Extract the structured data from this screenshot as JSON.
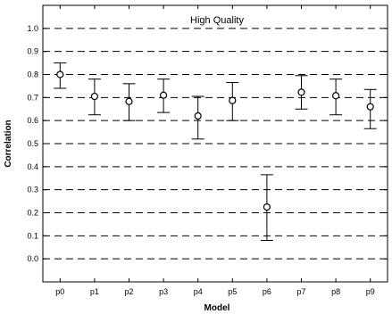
{
  "chart_data": {
    "type": "scatter",
    "title": "High Quality",
    "xlabel": "Model",
    "ylabel": "Correlation",
    "categories": [
      "p0",
      "p1",
      "p2",
      "p3",
      "p4",
      "p5",
      "p6",
      "p7",
      "p8",
      "p9"
    ],
    "series": [
      {
        "values": [
          0.8,
          0.705,
          0.683,
          0.71,
          0.62,
          0.687,
          0.225,
          0.723,
          0.708,
          0.66
        ],
        "error_low": [
          0.74,
          0.625,
          0.6,
          0.635,
          0.52,
          0.6,
          0.08,
          0.65,
          0.625,
          0.565
        ],
        "error_high": [
          0.85,
          0.78,
          0.76,
          0.78,
          0.705,
          0.765,
          0.365,
          0.795,
          0.78,
          0.735
        ]
      }
    ],
    "ylim": [
      -0.1,
      1.1
    ],
    "yticks": [
      "0.0",
      "0.1",
      "0.2",
      "0.3",
      "0.4",
      "0.5",
      "0.6",
      "0.7",
      "0.8",
      "0.9",
      "1.0"
    ],
    "grid": "dashed horizontal",
    "marker": "open circle",
    "colors": {
      "axis": "#000000",
      "marks": "#000000",
      "background": "#ffffff"
    }
  }
}
